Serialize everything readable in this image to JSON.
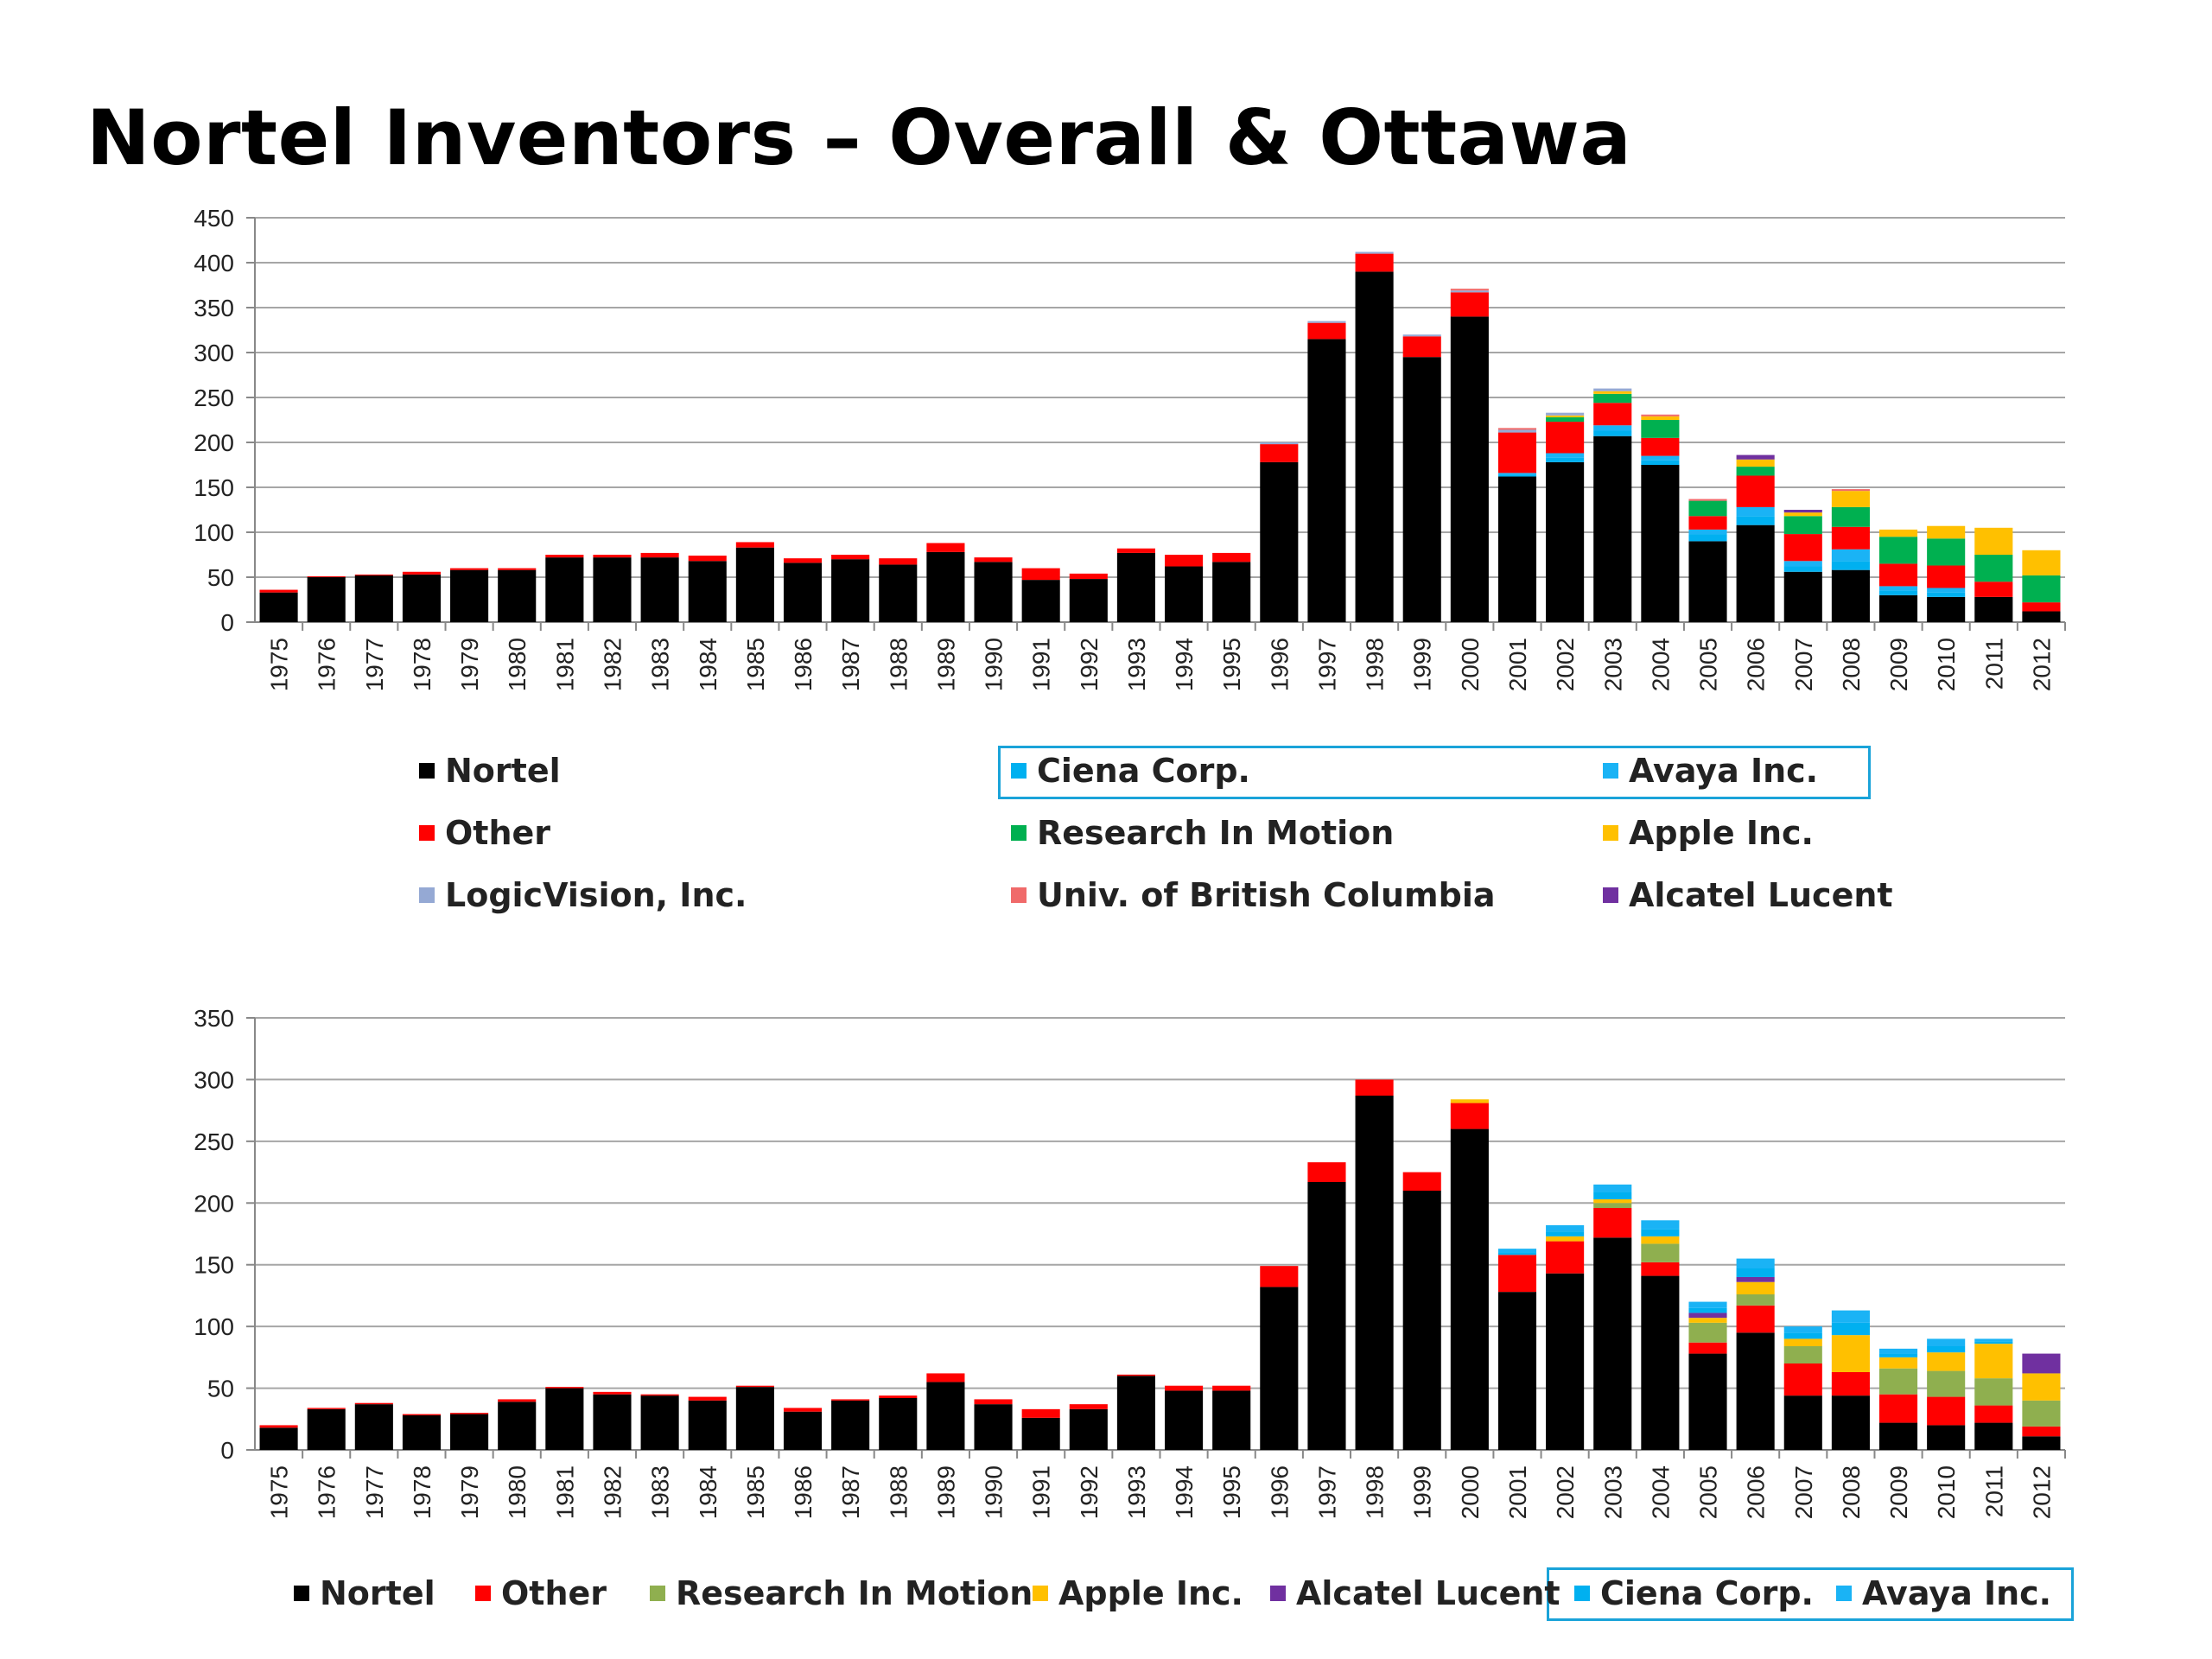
{
  "title": "Nortel Inventors – Overall & Ottawa",
  "colors": {
    "Nortel": "#000000",
    "Other": "#ff0000",
    "Ciena Corp.": "#00b0f0",
    "Avaya Inc.": "#1ab3f5",
    "Research In Motion": "#00b050",
    "Research In Motion (Ottawa)": "#8faf4f",
    "Apple Inc.": "#ffc000",
    "Alcatel Lucent": "#7030a0",
    "LogicVision, Inc.": "#95a9d4",
    "Univ. of British Columbia": "#f06a6a"
  },
  "legend_top": {
    "items": [
      "Nortel",
      "Other",
      "LogicVision, Inc.",
      "Ciena Corp.",
      "Research In Motion",
      "Univ. of British Columbia",
      "Avaya Inc.",
      "Apple Inc.",
      "Alcatel Lucent"
    ]
  },
  "legend_bottom": {
    "items": [
      "Nortel",
      "Other",
      "Research In Motion",
      "Apple Inc.",
      "Alcatel Lucent",
      "Ciena Corp.",
      "Avaya Inc."
    ]
  },
  "chart_data": [
    {
      "type": "bar",
      "stacked": true,
      "title": "",
      "xlabel": "",
      "ylabel": "",
      "ylim": [
        0,
        450
      ],
      "yticks": [
        0,
        50,
        100,
        150,
        200,
        250,
        300,
        350,
        400,
        450
      ],
      "grid": true,
      "categories": [
        "1975",
        "1976",
        "1977",
        "1978",
        "1979",
        "1980",
        "1981",
        "1982",
        "1983",
        "1984",
        "1985",
        "1986",
        "1987",
        "1988",
        "1989",
        "1990",
        "1991",
        "1992",
        "1993",
        "1994",
        "1995",
        "1996",
        "1997",
        "1998",
        "1999",
        "2000",
        "2001",
        "2002",
        "2003",
        "2004",
        "2005",
        "2006",
        "2007",
        "2008",
        "2009",
        "2010",
        "2011",
        "2012"
      ],
      "series": [
        {
          "name": "Nortel",
          "values": [
            33,
            50,
            52,
            53,
            58,
            58,
            72,
            72,
            72,
            68,
            83,
            66,
            70,
            64,
            78,
            67,
            47,
            48,
            77,
            62,
            67,
            178,
            315,
            390,
            295,
            340,
            162,
            178,
            207,
            175,
            90,
            108,
            56,
            58,
            30,
            28,
            28,
            12
          ]
        },
        {
          "name": "Ciena Corp.",
          "values": [
            0,
            0,
            0,
            0,
            0,
            0,
            0,
            0,
            0,
            0,
            0,
            0,
            0,
            0,
            0,
            0,
            0,
            0,
            0,
            0,
            0,
            0,
            0,
            0,
            0,
            0,
            2,
            5,
            6,
            5,
            8,
            10,
            6,
            10,
            5,
            5,
            0,
            0
          ]
        },
        {
          "name": "Avaya Inc.",
          "values": [
            0,
            0,
            0,
            0,
            0,
            0,
            0,
            0,
            0,
            0,
            0,
            0,
            0,
            0,
            0,
            0,
            0,
            0,
            0,
            0,
            0,
            0,
            0,
            0,
            0,
            0,
            2,
            5,
            6,
            5,
            5,
            10,
            6,
            13,
            5,
            5,
            0,
            0
          ]
        },
        {
          "name": "Other",
          "values": [
            3,
            1,
            1,
            3,
            2,
            2,
            3,
            3,
            5,
            6,
            6,
            5,
            5,
            7,
            10,
            5,
            13,
            6,
            5,
            13,
            10,
            20,
            18,
            20,
            23,
            27,
            45,
            35,
            25,
            20,
            15,
            35,
            30,
            25,
            25,
            25,
            17,
            10
          ]
        },
        {
          "name": "Research In Motion",
          "values": [
            0,
            0,
            0,
            0,
            0,
            0,
            0,
            0,
            0,
            0,
            0,
            0,
            0,
            0,
            0,
            0,
            0,
            0,
            0,
            0,
            0,
            0,
            0,
            0,
            0,
            0,
            0,
            5,
            10,
            20,
            17,
            10,
            20,
            22,
            30,
            30,
            30,
            30
          ]
        },
        {
          "name": "Apple Inc.",
          "values": [
            0,
            0,
            0,
            0,
            0,
            0,
            0,
            0,
            0,
            0,
            0,
            0,
            0,
            0,
            0,
            0,
            0,
            0,
            0,
            0,
            0,
            0,
            0,
            0,
            0,
            0,
            0,
            2,
            3,
            4,
            0,
            8,
            4,
            18,
            8,
            14,
            30,
            28
          ]
        },
        {
          "name": "LogicVision, Inc.",
          "values": [
            0,
            0,
            0,
            0,
            0,
            0,
            0,
            0,
            0,
            0,
            0,
            0,
            0,
            0,
            0,
            0,
            0,
            0,
            0,
            0,
            0,
            2,
            2,
            2,
            2,
            2,
            3,
            3,
            3,
            0,
            0,
            0,
            0,
            0,
            0,
            0,
            0,
            0
          ]
        },
        {
          "name": "Univ. of British Columbia",
          "values": [
            0,
            0,
            0,
            0,
            0,
            0,
            0,
            0,
            0,
            0,
            0,
            0,
            0,
            0,
            0,
            0,
            0,
            0,
            0,
            0,
            0,
            0,
            0,
            0,
            0,
            2,
            2,
            0,
            0,
            2,
            2,
            0,
            0,
            2,
            0,
            0,
            0,
            0
          ]
        },
        {
          "name": "Alcatel Lucent",
          "values": [
            0,
            0,
            0,
            0,
            0,
            0,
            0,
            0,
            0,
            0,
            0,
            0,
            0,
            0,
            0,
            0,
            0,
            0,
            0,
            0,
            0,
            0,
            0,
            0,
            0,
            0,
            0,
            0,
            0,
            0,
            0,
            5,
            3,
            0,
            0,
            0,
            0,
            0
          ]
        }
      ]
    },
    {
      "type": "bar",
      "stacked": true,
      "title": "",
      "xlabel": "",
      "ylabel": "",
      "ylim": [
        0,
        350
      ],
      "yticks": [
        0,
        50,
        100,
        150,
        200,
        250,
        300,
        350
      ],
      "grid": true,
      "categories": [
        "1975",
        "1976",
        "1977",
        "1978",
        "1979",
        "1980",
        "1981",
        "1982",
        "1983",
        "1984",
        "1985",
        "1986",
        "1987",
        "1988",
        "1989",
        "1990",
        "1991",
        "1992",
        "1993",
        "1994",
        "1995",
        "1996",
        "1997",
        "1998",
        "1999",
        "2000",
        "2001",
        "2002",
        "2003",
        "2004",
        "2005",
        "2006",
        "2007",
        "2008",
        "2009",
        "2010",
        "2011",
        "2012"
      ],
      "series": [
        {
          "name": "Nortel",
          "values": [
            18,
            33,
            37,
            28,
            29,
            39,
            50,
            45,
            44,
            40,
            51,
            31,
            40,
            42,
            55,
            37,
            26,
            33,
            60,
            48,
            48,
            132,
            217,
            287,
            210,
            260,
            128,
            143,
            172,
            141,
            78,
            95,
            44,
            44,
            22,
            20,
            22,
            11
          ]
        },
        {
          "name": "Other",
          "values": [
            2,
            1,
            1,
            1,
            1,
            2,
            1,
            2,
            1,
            3,
            1,
            3,
            1,
            2,
            7,
            4,
            7,
            4,
            1,
            4,
            4,
            17,
            16,
            13,
            15,
            21,
            30,
            26,
            24,
            11,
            9,
            22,
            26,
            19,
            23,
            23,
            14,
            8
          ]
        },
        {
          "name": "Research In Motion",
          "values": [
            0,
            0,
            0,
            0,
            0,
            0,
            0,
            0,
            0,
            0,
            0,
            0,
            0,
            0,
            0,
            0,
            0,
            0,
            0,
            0,
            0,
            0,
            0,
            0,
            0,
            0,
            0,
            0,
            4,
            15,
            16,
            9,
            14,
            0,
            21,
            21,
            22,
            21
          ]
        },
        {
          "name": "Apple Inc.",
          "values": [
            0,
            0,
            0,
            0,
            0,
            0,
            0,
            0,
            0,
            0,
            0,
            0,
            0,
            0,
            0,
            0,
            0,
            0,
            0,
            0,
            0,
            0,
            0,
            0,
            0,
            3,
            0,
            4,
            3,
            6,
            4,
            10,
            6,
            30,
            9,
            15,
            28,
            22
          ]
        },
        {
          "name": "Alcatel Lucent",
          "values": [
            0,
            0,
            0,
            0,
            0,
            0,
            0,
            0,
            0,
            0,
            0,
            0,
            0,
            0,
            0,
            0,
            0,
            0,
            0,
            0,
            0,
            0,
            0,
            0,
            0,
            0,
            0,
            0,
            0,
            0,
            4,
            4,
            0,
            0,
            0,
            0,
            0,
            16
          ]
        },
        {
          "name": "Ciena Corp.",
          "values": [
            0,
            0,
            0,
            0,
            0,
            0,
            0,
            0,
            0,
            0,
            0,
            0,
            0,
            0,
            0,
            0,
            0,
            0,
            0,
            0,
            0,
            0,
            0,
            0,
            0,
            0,
            2,
            4,
            6,
            6,
            4,
            7,
            5,
            10,
            3,
            5,
            2,
            0
          ]
        },
        {
          "name": "Avaya Inc.",
          "values": [
            0,
            0,
            0,
            0,
            0,
            0,
            0,
            0,
            0,
            0,
            0,
            0,
            0,
            0,
            0,
            0,
            0,
            0,
            0,
            0,
            0,
            0,
            0,
            0,
            0,
            0,
            3,
            5,
            6,
            7,
            5,
            8,
            5,
            10,
            4,
            6,
            2,
            0
          ]
        }
      ]
    }
  ]
}
